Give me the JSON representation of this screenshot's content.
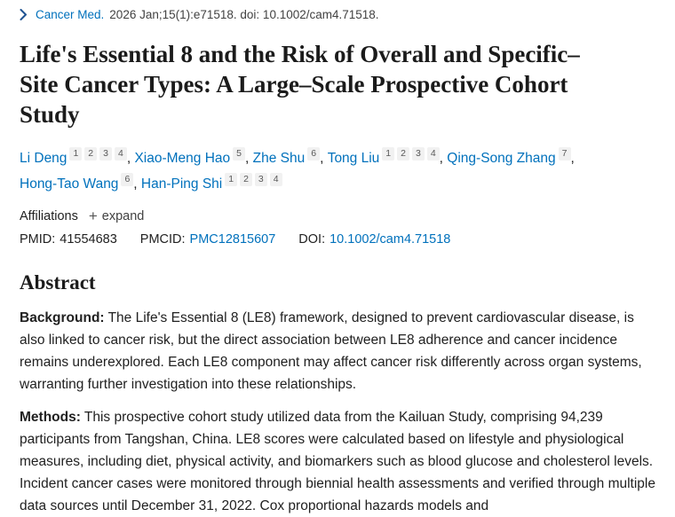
{
  "journal_bar": {
    "journal": "Cancer Med.",
    "citation": "2026 Jan;15(1):e71518. doi: 10.1002/cam4.71518."
  },
  "title": "Life's Essential 8 and the Risk of Overall and Specific–Site Cancer Types: A Large–Scale Prospective Cohort Study",
  "authors": [
    {
      "name": "Li Deng",
      "affiliations": [
        "1",
        "2",
        "3",
        "4"
      ]
    },
    {
      "name": "Xiao-Meng Hao",
      "affiliations": [
        "5"
      ]
    },
    {
      "name": "Zhe Shu",
      "affiliations": [
        "6"
      ]
    },
    {
      "name": "Tong Liu",
      "affiliations": [
        "1",
        "2",
        "3",
        "4"
      ]
    },
    {
      "name": "Qing-Song Zhang",
      "affiliations": [
        "7"
      ]
    },
    {
      "name": "Hong-Tao Wang",
      "affiliations": [
        "6"
      ]
    },
    {
      "name": "Han-Ping Shi",
      "affiliations": [
        "1",
        "2",
        "3",
        "4"
      ]
    }
  ],
  "author_separator": ", ",
  "affiliations": {
    "label": "Affiliations",
    "expand_icon": "+",
    "expand_label": "expand"
  },
  "identifiers": {
    "pmid_label": "PMID:",
    "pmid_value": "41554683",
    "pmcid_label": "PMCID:",
    "pmcid_value": "PMC12815607",
    "doi_label": "DOI:",
    "doi_value": "10.1002/cam4.71518"
  },
  "abstract": {
    "heading": "Abstract",
    "sections": [
      {
        "label": "Background:",
        "text": "The Life's Essential 8 (LE8) framework, designed to prevent cardiovascular disease, is also linked to cancer risk, but the direct association between LE8 adherence and cancer incidence remains underexplored. Each LE8 component may affect cancer risk differently across organ systems, warranting further investigation into these relationships."
      },
      {
        "label": "Methods:",
        "text": "This prospective cohort study utilized data from the Kailuan Study, comprising 94,239 participants from Tangshan, China. LE8 scores were calculated based on lifestyle and physiological measures, including diet, physical activity, and biomarkers such as blood glucose and cholesterol levels. Incident cancer cases were monitored through biennial health assessments and verified through multiple data sources until December 31, 2022. Cox proportional hazards models and"
      }
    ]
  },
  "colors": {
    "link_blue": "#0071bc",
    "chevron_blue": "#205493",
    "ink": "#212121",
    "badge_bg": "#f1f1f1",
    "badge_text": "#595959"
  }
}
